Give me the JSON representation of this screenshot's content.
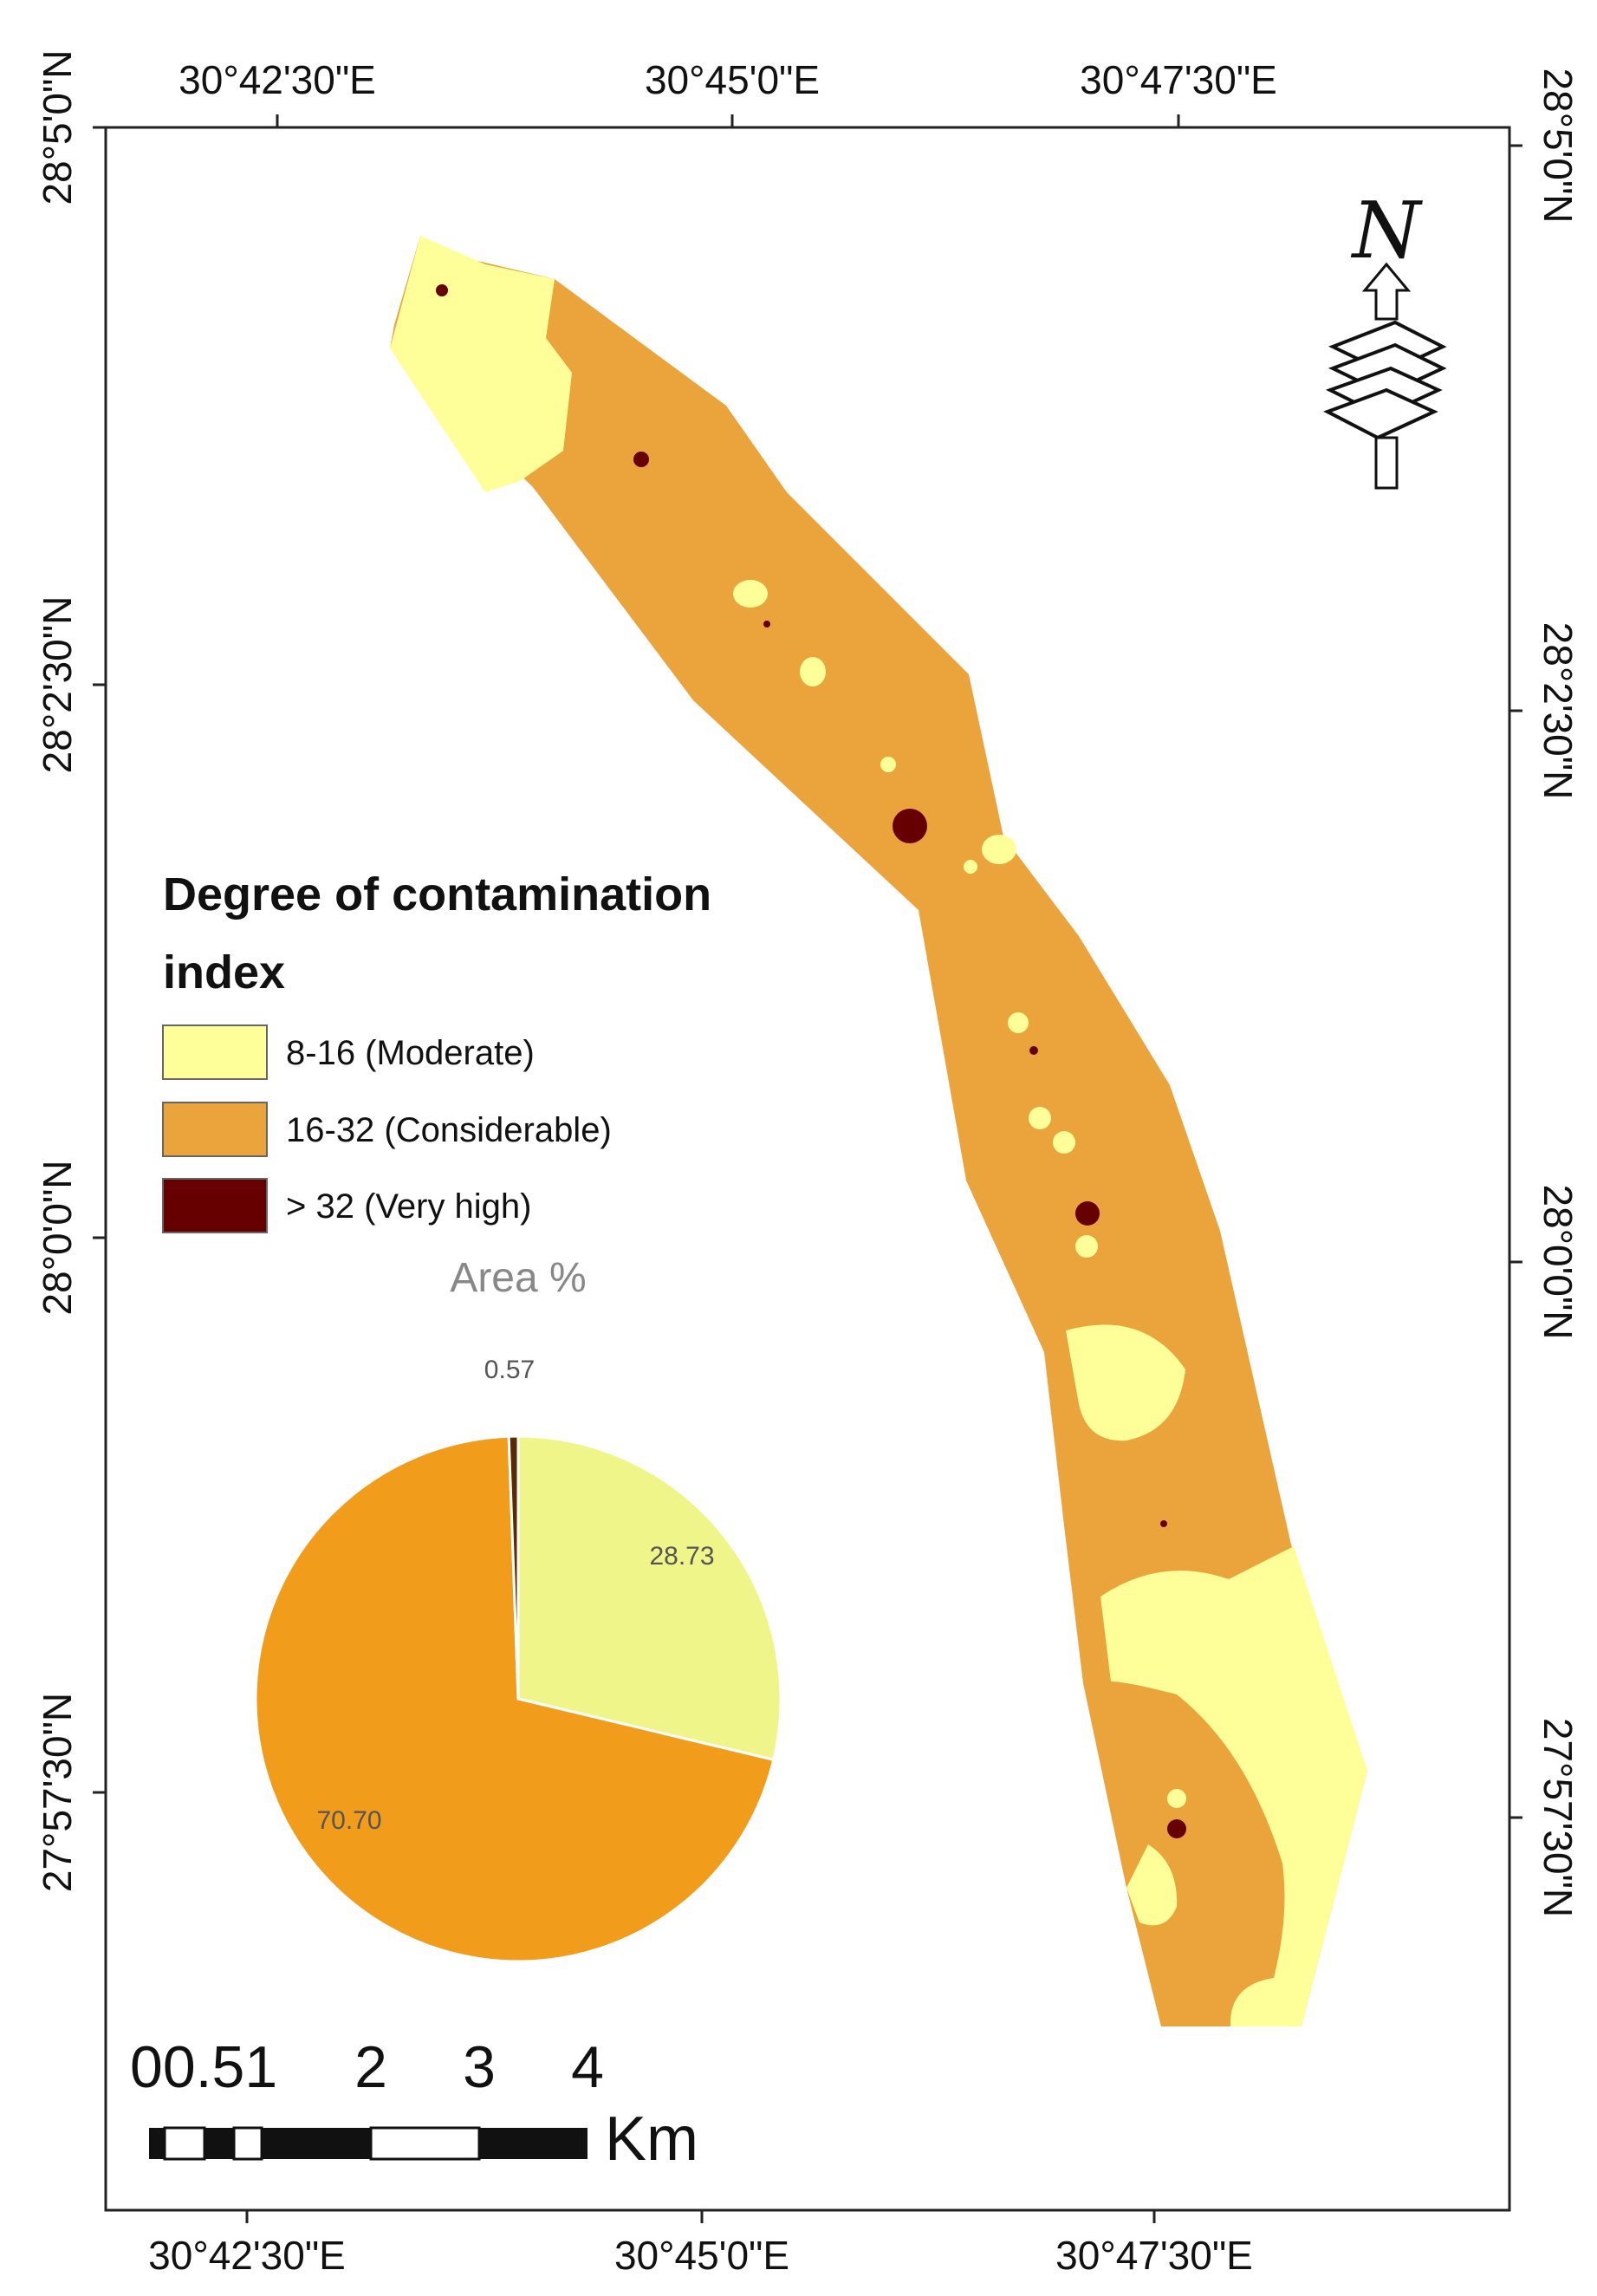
{
  "colors": {
    "moderate": "#ffff99",
    "considerable": "#eba33c",
    "very_high": "#660000",
    "pie_moderate": "#f0f58a",
    "pie_considerable": "#f29c1c",
    "pie_very_high": "#5a2a00"
  },
  "axes": {
    "top_labels": [
      "30°42'30\"E",
      "30°45'0\"E",
      "30°47'30\"E"
    ],
    "bottom_labels": [
      "30°42'30\"E",
      "30°45'0\"E",
      "30°47'30\"E"
    ],
    "left_labels": [
      "28°5'0\"N",
      "28°2'30\"N",
      "28°0'0\"N",
      "27°57'30\"N"
    ],
    "right_labels": [
      "28°5'0\"N",
      "28°2'30\"N",
      "28°0'0\"N",
      "27°57'30\"N"
    ]
  },
  "north_arrow": {
    "letter": "N",
    "icon": "north-arrow-icon"
  },
  "legend": {
    "title_line1": "Degree of contamination",
    "title_line2": "index",
    "items": [
      {
        "label": "8-16 (Moderate)",
        "color": "#ffff99"
      },
      {
        "label": "16-32 (Considerable)",
        "color": "#eba33c"
      },
      {
        "label": "> 32 (Very high)",
        "color": "#660000"
      }
    ]
  },
  "chart_data": {
    "type": "pie",
    "title": "Area %",
    "slices": [
      {
        "label": "8-16 (Moderate)",
        "value": 28.73,
        "display": "28.73"
      },
      {
        "label": "16-32 (Considerable)",
        "value": 70.7,
        "display": "70.70"
      },
      {
        "label": "> 32 (Very high)",
        "value": 0.57,
        "display": "0.57"
      }
    ]
  },
  "scale_bar": {
    "labels": [
      "00.51",
      "2",
      "3",
      "4"
    ],
    "unit": "Km"
  }
}
